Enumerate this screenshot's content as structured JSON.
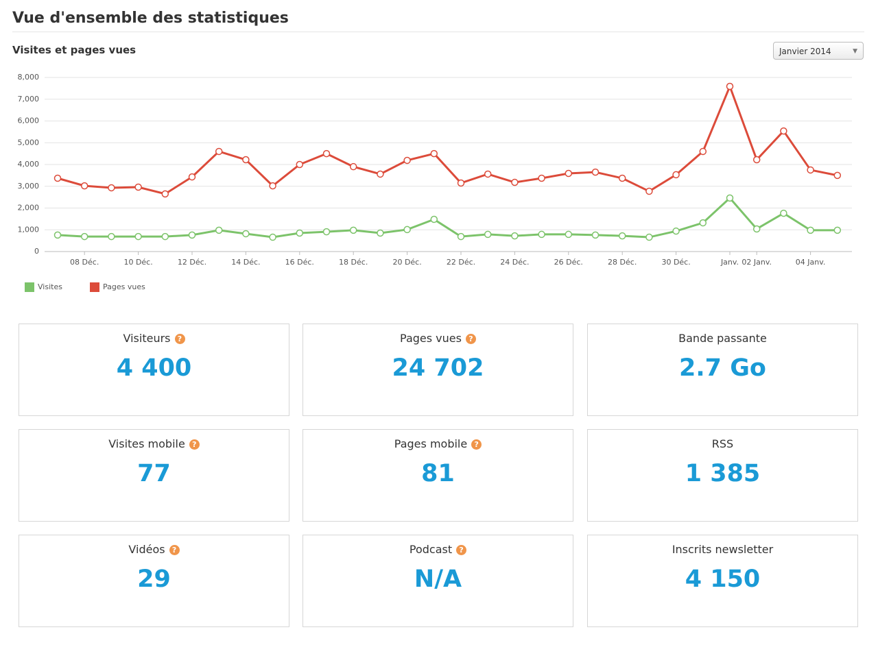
{
  "header": {
    "title": "Vue d'ensemble des statistiques"
  },
  "chart_data": {
    "type": "line",
    "title": "Visites et pages vues",
    "period": "Janvier 2014",
    "categories": [
      null,
      "08 Déc.",
      null,
      "10 Déc.",
      null,
      "12 Déc.",
      null,
      "14 Déc.",
      null,
      "16 Déc.",
      null,
      "18 Déc.",
      null,
      "20 Déc.",
      null,
      "22 Déc.",
      null,
      "24 Déc.",
      null,
      "26 Déc.",
      null,
      "28 Déc.",
      null,
      "30 Déc.",
      null,
      "Janv.",
      "02 Janv.",
      null,
      "04 Janv.",
      null
    ],
    "series": [
      {
        "name": "Visites",
        "color": "#7cc36a",
        "values": [
          760,
          690,
          690,
          690,
          690,
          760,
          980,
          820,
          660,
          850,
          910,
          980,
          850,
          1010,
          1480,
          690,
          790,
          720,
          790,
          790,
          760,
          720,
          660,
          940,
          1320,
          2460,
          1040,
          1760,
          980,
          980
        ]
      },
      {
        "name": "Pages vues",
        "color": "#dc4b3a",
        "values": [
          3370,
          3020,
          2930,
          2960,
          2650,
          3430,
          4600,
          4220,
          3020,
          4000,
          4500,
          3900,
          3560,
          4190,
          4500,
          3150,
          3560,
          3180,
          3370,
          3590,
          3650,
          3370,
          2770,
          3530,
          4600,
          7590,
          4220,
          5540,
          3750,
          3500
        ]
      }
    ],
    "ylim": [
      0,
      8000
    ],
    "yticks": [
      0,
      {
        "value": 1000,
        "label": "1,000"
      },
      {
        "value": 2000,
        "label": "2,000"
      },
      {
        "value": 3000,
        "label": "3,000"
      },
      {
        "value": 4000,
        "label": "4,000"
      },
      {
        "value": 5000,
        "label": "5,000"
      },
      {
        "value": 6000,
        "label": "6,000"
      },
      {
        "value": 7000,
        "label": "7,000"
      },
      {
        "value": 8000,
        "label": "8,000"
      }
    ],
    "grid": true,
    "legend": "bottom-left"
  },
  "stats": [
    {
      "label": "Visiteurs",
      "value": "4 400"
    },
    {
      "label": "Pages vues",
      "value": "24 702"
    },
    {
      "label": "Bande passante",
      "value": "2.7 Go"
    },
    {
      "label": "Visites mobile",
      "value": "77"
    },
    {
      "label": "Pages mobile",
      "value": "81"
    },
    {
      "label": "RSS",
      "value": "1 385"
    },
    {
      "label": "Vidéos",
      "value": "29"
    },
    {
      "label": "Podcast",
      "value": "N/A"
    },
    {
      "label": "Inscrits newsletter",
      "value": "4 150"
    }
  ]
}
